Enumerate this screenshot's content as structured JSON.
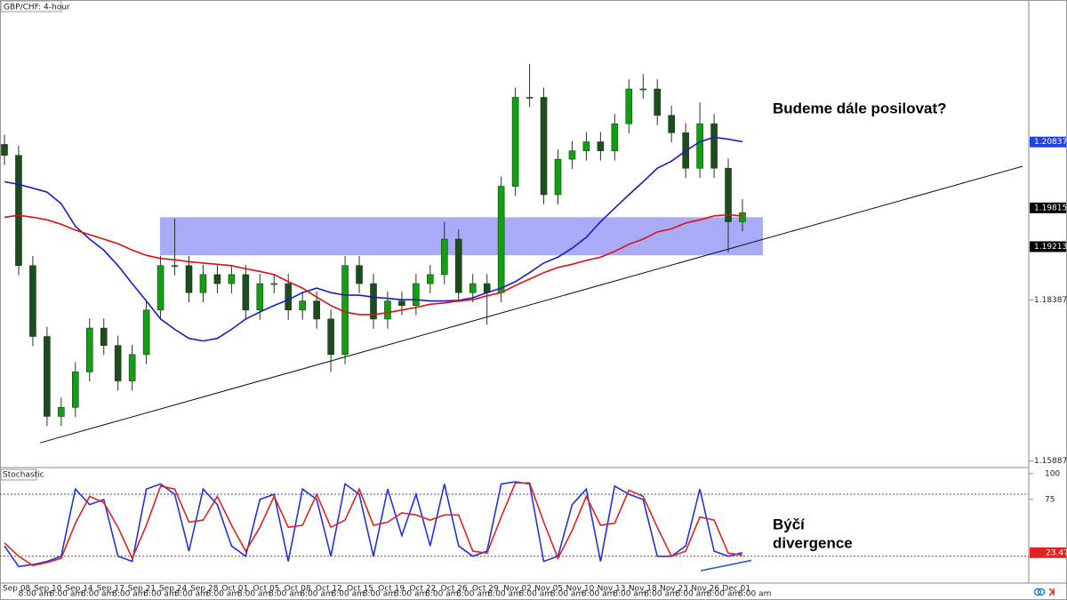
{
  "chart_data": [
    {
      "type": "candlestick",
      "title": "GBP/CHF: 4-hour",
      "annotation": "Budeme dále posilovat?",
      "up_color": "#12a012",
      "down_color": "#1d4d1d",
      "open": [
        1.208,
        1.2063,
        1.1892,
        1.1782,
        1.1658,
        1.1672,
        1.1727,
        1.1795,
        1.1768,
        1.1713,
        1.1754,
        1.1823,
        1.1892,
        1.1892,
        1.185,
        1.1878,
        1.1864,
        1.1878,
        1.1823,
        1.1864,
        1.1864,
        1.1823,
        1.1837,
        1.1809,
        1.1754,
        1.1892,
        1.1864,
        1.1809,
        1.1837,
        1.183,
        1.1864,
        1.1878,
        1.1933,
        1.185,
        1.1864,
        1.185,
        1.2015,
        1.2153,
        1.2153,
        1.2002,
        1.2057,
        1.207,
        1.2084,
        1.207,
        1.2112,
        1.2166,
        1.2166,
        1.2125,
        1.2098,
        1.2043,
        1.2112,
        1.2043,
        1.196
      ],
      "high": [
        1.2095,
        1.2078,
        1.1907,
        1.1797,
        1.1687,
        1.1742,
        1.181,
        1.181,
        1.1783,
        1.1769,
        1.1838,
        1.1907,
        1.1965,
        1.1907,
        1.1893,
        1.1893,
        1.1893,
        1.1893,
        1.1879,
        1.1879,
        1.1879,
        1.1852,
        1.1852,
        1.1824,
        1.1907,
        1.1907,
        1.1879,
        1.1852,
        1.1852,
        1.1879,
        1.1893,
        1.196,
        1.1948,
        1.1879,
        1.1879,
        1.203,
        1.2168,
        1.2205,
        1.2168,
        1.2072,
        1.2085,
        1.2099,
        1.2099,
        1.2127,
        1.2181,
        1.2189,
        1.2181,
        1.214,
        1.2113,
        1.2145,
        1.2127,
        1.2058,
        1.1995
      ],
      "low": [
        1.2048,
        1.1877,
        1.1767,
        1.1643,
        1.1643,
        1.1657,
        1.1712,
        1.1753,
        1.1698,
        1.1698,
        1.1739,
        1.1808,
        1.1877,
        1.1835,
        1.1835,
        1.1849,
        1.1849,
        1.1808,
        1.1808,
        1.1849,
        1.1808,
        1.1808,
        1.1794,
        1.1727,
        1.1739,
        1.1849,
        1.1794,
        1.1794,
        1.1815,
        1.1815,
        1.1849,
        1.1863,
        1.1835,
        1.1835,
        1.18,
        1.1835,
        1.2,
        1.2138,
        1.1987,
        1.1987,
        1.2042,
        1.2055,
        1.2055,
        1.2055,
        1.2097,
        1.2151,
        1.211,
        1.2083,
        1.2028,
        1.2028,
        1.2028,
        1.1912,
        1.1945
      ],
      "close": [
        1.2063,
        1.1892,
        1.1782,
        1.1658,
        1.1672,
        1.1727,
        1.1795,
        1.1768,
        1.1713,
        1.1754,
        1.1823,
        1.1892,
        1.1892,
        1.185,
        1.1878,
        1.1864,
        1.1878,
        1.1823,
        1.1864,
        1.1864,
        1.1823,
        1.1837,
        1.1809,
        1.1754,
        1.1892,
        1.1864,
        1.1809,
        1.1837,
        1.183,
        1.1864,
        1.1878,
        1.1933,
        1.185,
        1.1864,
        1.185,
        1.2015,
        1.2153,
        1.2153,
        1.2002,
        1.2057,
        1.207,
        1.2084,
        1.207,
        1.2112,
        1.2166,
        1.2166,
        1.2125,
        1.2098,
        1.2043,
        1.2112,
        1.2043,
        1.196,
        1.1974
      ],
      "series": [
        {
          "color": "#1a1acc",
          "values": [
            1.2022,
            1.2018,
            1.2012,
            1.2006,
            1.1988,
            1.1953,
            1.1933,
            1.1916,
            1.1892,
            1.1864,
            1.1837,
            1.1809,
            1.1793,
            1.1779,
            1.1775,
            1.1779,
            1.1793,
            1.1809,
            1.182,
            1.183,
            1.1839,
            1.185,
            1.1857,
            1.185,
            1.1846,
            1.1846,
            1.1843,
            1.1841,
            1.1839,
            1.1839,
            1.1837,
            1.1837,
            1.1838,
            1.1842,
            1.185,
            1.1857,
            1.1867,
            1.1881,
            1.1896,
            1.1905,
            1.1919,
            1.1936,
            1.196,
            1.1981,
            1.2002,
            1.2022,
            1.2043,
            1.2054,
            1.207,
            1.2084,
            1.2091,
            1.2088,
            1.2084
          ]
        },
        {
          "color": "#e01010",
          "values": [
            1.1967,
            1.197,
            1.1967,
            1.1963,
            1.1956,
            1.1947,
            1.194,
            1.1933,
            1.1926,
            1.1916,
            1.1908,
            1.1903,
            1.1901,
            1.1898,
            1.1896,
            1.1894,
            1.1892,
            1.1887,
            1.1883,
            1.1878,
            1.1867,
            1.1857,
            1.1843,
            1.183,
            1.182,
            1.1816,
            1.1816,
            1.1819,
            1.1823,
            1.1827,
            1.1832,
            1.1834,
            1.1837,
            1.1839,
            1.1845,
            1.185,
            1.1861,
            1.1871,
            1.1881,
            1.1889,
            1.1894,
            1.19,
            1.1905,
            1.1914,
            1.1925,
            1.1933,
            1.1944,
            1.1949,
            1.1958,
            1.1963,
            1.1969,
            1.1971,
            1.1969
          ]
        }
      ],
      "zone": [
        1.1908,
        1.1967
      ],
      "zone_color": "#a9abf8",
      "trendline": [
        1.1617,
        1.2046
      ],
      "ylim": [
        1.158,
        1.2304
      ],
      "yticks": [
        1.20837,
        1.19815,
        1.19213,
        1.18387,
        1.15887
      ],
      "ytick_colors": [
        "#2244dd",
        "#000000",
        "#000000",
        null,
        null
      ],
      "x_labels": [
        "Sep 08",
        "8:00 am",
        "Sep 10",
        "8:00 am",
        "Sep 14",
        "8:00 am",
        "Sep 17",
        "8:00 am",
        "Sep 21",
        "8:00 am",
        "Sep 24",
        "8:00 am",
        "Sep 28",
        "8:00 am",
        "Oct 01",
        "8:00 am",
        "Oct 05",
        "8:00 am",
        "Oct 08",
        "8:00 am",
        "Oct 12",
        "8:00 am",
        "Oct 15",
        "8:00 am",
        "Oct 19",
        "8:00 am",
        "Oct 22",
        "8:00 am",
        "Oct 26",
        "8:00 am",
        "Oct 29",
        "8:00 am",
        "Nov 02",
        "8:00 am",
        "Nov 05",
        "8:00 am",
        "Nov 10",
        "8:00 am",
        "Nov 13",
        "8:00 am",
        "Nov 18",
        "8:00 am",
        "Nov 23",
        "8:00 am",
        "Nov 26",
        "8:00 am",
        "Dec 01",
        "8:00 am"
      ]
    },
    {
      "type": "line",
      "title": "Stochastic",
      "annotation": [
        "Býčí",
        "divergence"
      ],
      "series": [
        {
          "color": "#2233dd",
          "values": [
            30,
            10,
            12,
            15,
            20,
            85,
            70,
            75,
            20,
            15,
            85,
            90,
            80,
            25,
            85,
            70,
            30,
            20,
            75,
            80,
            15,
            85,
            75,
            20,
            90,
            80,
            20,
            85,
            40,
            80,
            30,
            90,
            30,
            20,
            25,
            90,
            92,
            90,
            15,
            20,
            70,
            85,
            15,
            88,
            80,
            75,
            20,
            20,
            30,
            85,
            25,
            20,
            23.47
          ]
        },
        {
          "color": "#e02222",
          "values": [
            33,
            20,
            11,
            14,
            18,
            52,
            78,
            72,
            48,
            18,
            50,
            88,
            85,
            53,
            55,
            78,
            50,
            25,
            48,
            78,
            48,
            50,
            80,
            48,
            55,
            85,
            50,
            53,
            62,
            60,
            55,
            60,
            60,
            25,
            23,
            58,
            91,
            91,
            53,
            18,
            45,
            78,
            50,
            52,
            84,
            78,
            48,
            20,
            25,
            58,
            55,
            23,
            21
          ]
        }
      ],
      "last_value": 23.47,
      "last_value_color": "#e02222",
      "levels": [
        80,
        20
      ],
      "level_colors": [
        "#3344cc",
        "#dd2222"
      ],
      "divergence_line": [
        6,
        16
      ],
      "divergence_color": "#3355dd",
      "ylim": [
        -6,
        105
      ],
      "yticks": [
        100,
        75
      ]
    }
  ]
}
